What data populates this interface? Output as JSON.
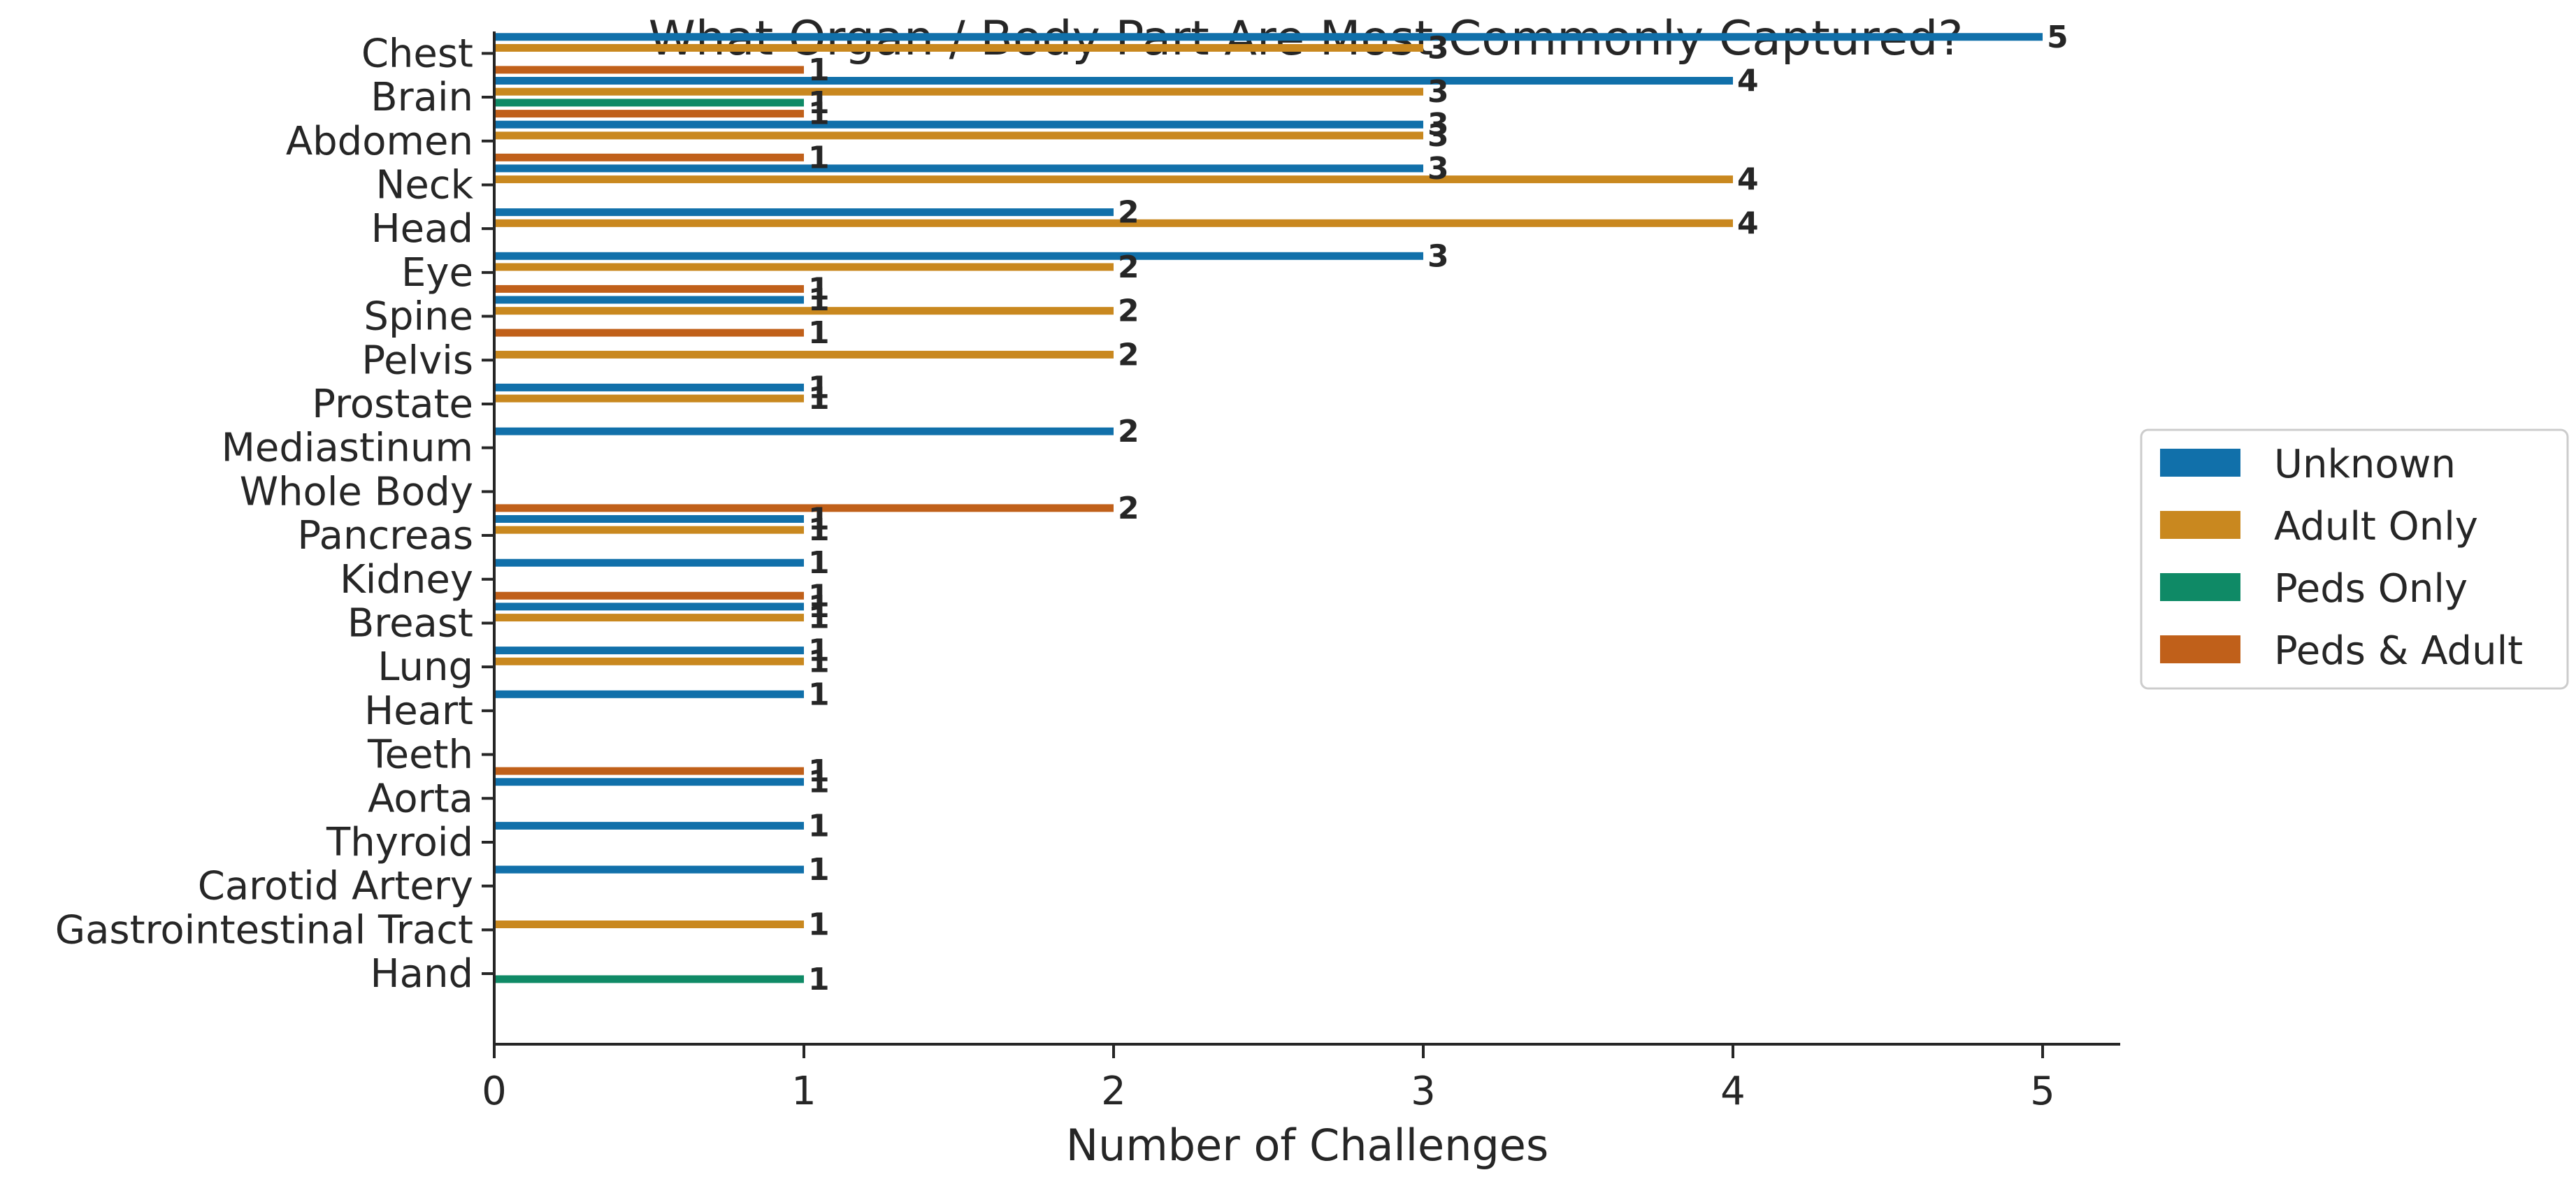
{
  "chart_data": {
    "type": "bar",
    "orientation": "horizontal",
    "title": "What Organ / Body Part Are Most Commonly Captured?",
    "xlabel": "Number of Challenges",
    "ylabel": "",
    "xlim": [
      0,
      5.25
    ],
    "xticks": [
      0,
      1,
      2,
      3,
      4,
      5
    ],
    "grid": false,
    "legend_position": "right",
    "categories": [
      "Chest",
      "Brain",
      "Abdomen",
      "Neck",
      "Head",
      "Eye",
      "Spine",
      "Pelvis",
      "Prostate",
      "Mediastinum",
      "Whole Body",
      "Pancreas",
      "Kidney",
      "Breast",
      "Lung",
      "Heart",
      "Teeth",
      "Aorta",
      "Thyroid",
      "Carotid Artery",
      "Gastrointestinal Tract",
      "Hand"
    ],
    "series": [
      {
        "name": "Unknown",
        "color": "#1170aa",
        "values": [
          5,
          4,
          3,
          3,
          2,
          3,
          1,
          null,
          1,
          2,
          null,
          1,
          1,
          1,
          1,
          1,
          null,
          1,
          1,
          1,
          null,
          null
        ]
      },
      {
        "name": "Adult Only",
        "color": "#c9881f",
        "values": [
          3,
          3,
          3,
          4,
          4,
          2,
          2,
          2,
          1,
          null,
          null,
          1,
          null,
          1,
          1,
          null,
          null,
          null,
          null,
          null,
          1,
          null
        ]
      },
      {
        "name": "Peds Only",
        "color": "#0f8a66",
        "values": [
          null,
          1,
          null,
          null,
          null,
          null,
          null,
          null,
          null,
          null,
          null,
          null,
          null,
          null,
          null,
          null,
          null,
          null,
          null,
          null,
          null,
          1
        ]
      },
      {
        "name": "Peds & Adult",
        "color": "#c0601a",
        "values": [
          1,
          1,
          1,
          null,
          null,
          1,
          1,
          null,
          null,
          null,
          2,
          null,
          1,
          null,
          null,
          null,
          1,
          null,
          null,
          null,
          null,
          null
        ]
      }
    ]
  }
}
